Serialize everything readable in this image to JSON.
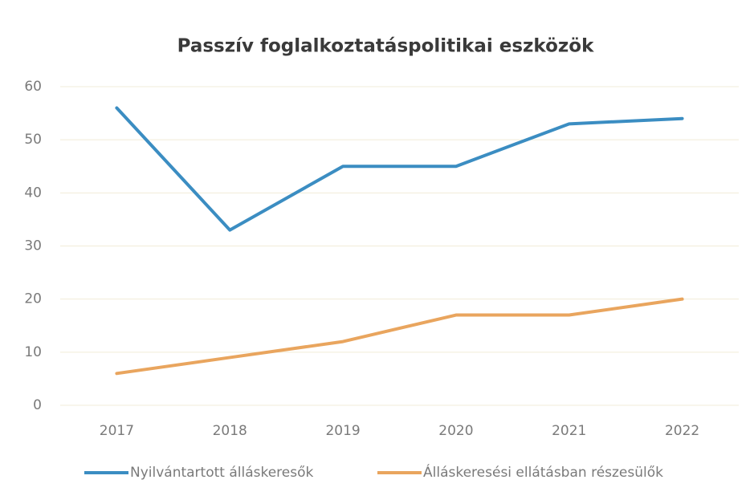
{
  "chart_data": {
    "type": "line",
    "title": "Passzív foglalkoztatáspolitikai eszközök",
    "categories": [
      "2017",
      "2018",
      "2019",
      "2020",
      "2021",
      "2022"
    ],
    "series": [
      {
        "name": "Nyilvántartott álláskeresők",
        "color": "#3b8dc2",
        "values": [
          56,
          33,
          45,
          45,
          53,
          54
        ]
      },
      {
        "name": "Álláskeresési ellátásban részesülők",
        "color": "#e9a55e",
        "values": [
          6,
          9,
          12,
          17,
          17,
          20
        ]
      }
    ],
    "ylim": [
      0,
      60
    ],
    "yticks": [
      0,
      10,
      20,
      30,
      40,
      50,
      60
    ],
    "grid": true,
    "legend": "bottom"
  }
}
